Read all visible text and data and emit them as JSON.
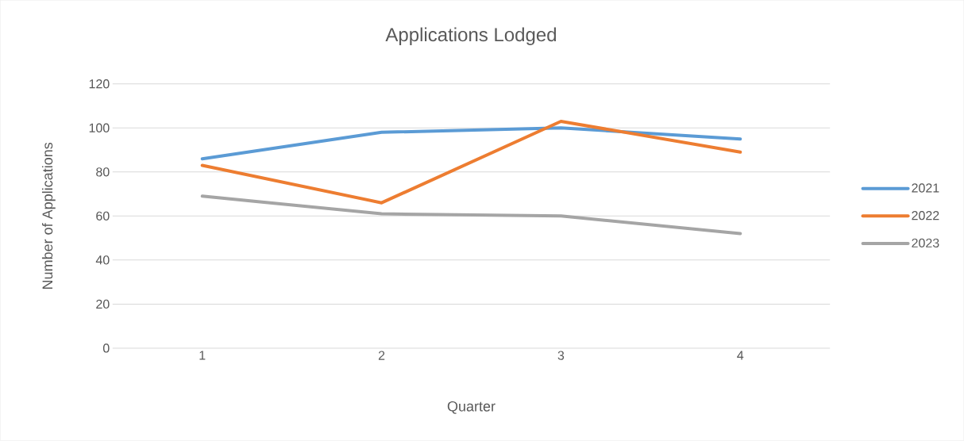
{
  "chart_data": {
    "type": "line",
    "title": "Applications Lodged",
    "xlabel": "Quarter",
    "ylabel": "Number of Applications",
    "categories": [
      "1",
      "2",
      "3",
      "4"
    ],
    "series": [
      {
        "name": "2021",
        "color": "#5b9bd5",
        "values": [
          86,
          98,
          100,
          95
        ]
      },
      {
        "name": "2022",
        "color": "#ed7d31",
        "values": [
          83,
          66,
          103,
          89
        ]
      },
      {
        "name": "2023",
        "color": "#a5a5a5",
        "values": [
          69,
          61,
          60,
          52
        ]
      }
    ],
    "ylim": [
      0,
      120
    ],
    "yticks": [
      0,
      20,
      40,
      60,
      80,
      100,
      120
    ],
    "grid": "y",
    "legend": "right",
    "line_style": "solid"
  }
}
